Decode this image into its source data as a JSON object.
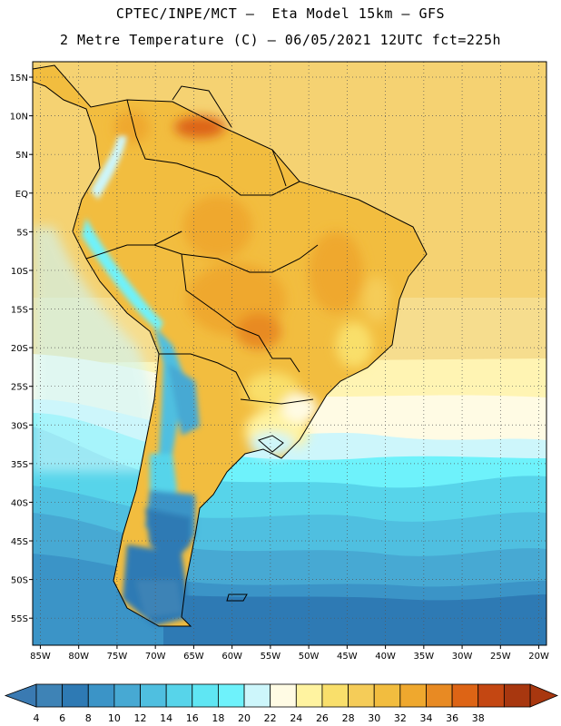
{
  "header": {
    "title_line1": "CPTEC/INPE/MCT –  Eta Model 15km – GFS",
    "title_line2": "2 Metre Temperature (C) – 06/05/2021 12UTC fct=225h"
  },
  "map": {
    "lon_range": [
      -86,
      -19
    ],
    "lat_range": [
      17,
      -58.5
    ],
    "lat_ticks": [
      {
        "value": 15,
        "label": "15N"
      },
      {
        "value": 10,
        "label": "10N"
      },
      {
        "value": 5,
        "label": "5N"
      },
      {
        "value": 0,
        "label": "EQ"
      },
      {
        "value": -5,
        "label": "5S"
      },
      {
        "value": -10,
        "label": "10S"
      },
      {
        "value": -15,
        "label": "15S"
      },
      {
        "value": -20,
        "label": "20S"
      },
      {
        "value": -25,
        "label": "25S"
      },
      {
        "value": -30,
        "label": "30S"
      },
      {
        "value": -35,
        "label": "35S"
      },
      {
        "value": -40,
        "label": "40S"
      },
      {
        "value": -45,
        "label": "45S"
      },
      {
        "value": -50,
        "label": "50S"
      },
      {
        "value": -55,
        "label": "55S"
      }
    ],
    "lon_ticks": [
      {
        "value": -85,
        "label": "85W"
      },
      {
        "value": -80,
        "label": "80W"
      },
      {
        "value": -75,
        "label": "75W"
      },
      {
        "value": -70,
        "label": "70W"
      },
      {
        "value": -65,
        "label": "65W"
      },
      {
        "value": -60,
        "label": "60W"
      },
      {
        "value": -55,
        "label": "55W"
      },
      {
        "value": -50,
        "label": "50W"
      },
      {
        "value": -45,
        "label": "45W"
      },
      {
        "value": -40,
        "label": "40W"
      },
      {
        "value": -35,
        "label": "35W"
      },
      {
        "value": -30,
        "label": "30W"
      },
      {
        "value": -25,
        "label": "25W"
      },
      {
        "value": -20,
        "label": "20W"
      }
    ]
  },
  "colorbar": {
    "labels": [
      "4",
      "6",
      "8",
      "10",
      "12",
      "14",
      "16",
      "18",
      "20",
      "22",
      "24",
      "26",
      "28",
      "30",
      "32",
      "34",
      "36",
      "38"
    ],
    "colors": [
      "#3e83b6",
      "#2e7ab4",
      "#3b94c7",
      "#47a9d3",
      "#4fbfe0",
      "#57d4ea",
      "#5fe6f3",
      "#6ef2fb",
      "#cdf6fb",
      "#fffbe4",
      "#fff3a0",
      "#f9df6b",
      "#f5cc58",
      "#f2bd3f",
      "#efa82e",
      "#e88a23",
      "#dd6415",
      "#c44712",
      "#a8370f"
    ],
    "low_color": "#3a7ab2",
    "high_color": "#a8370f"
  }
}
